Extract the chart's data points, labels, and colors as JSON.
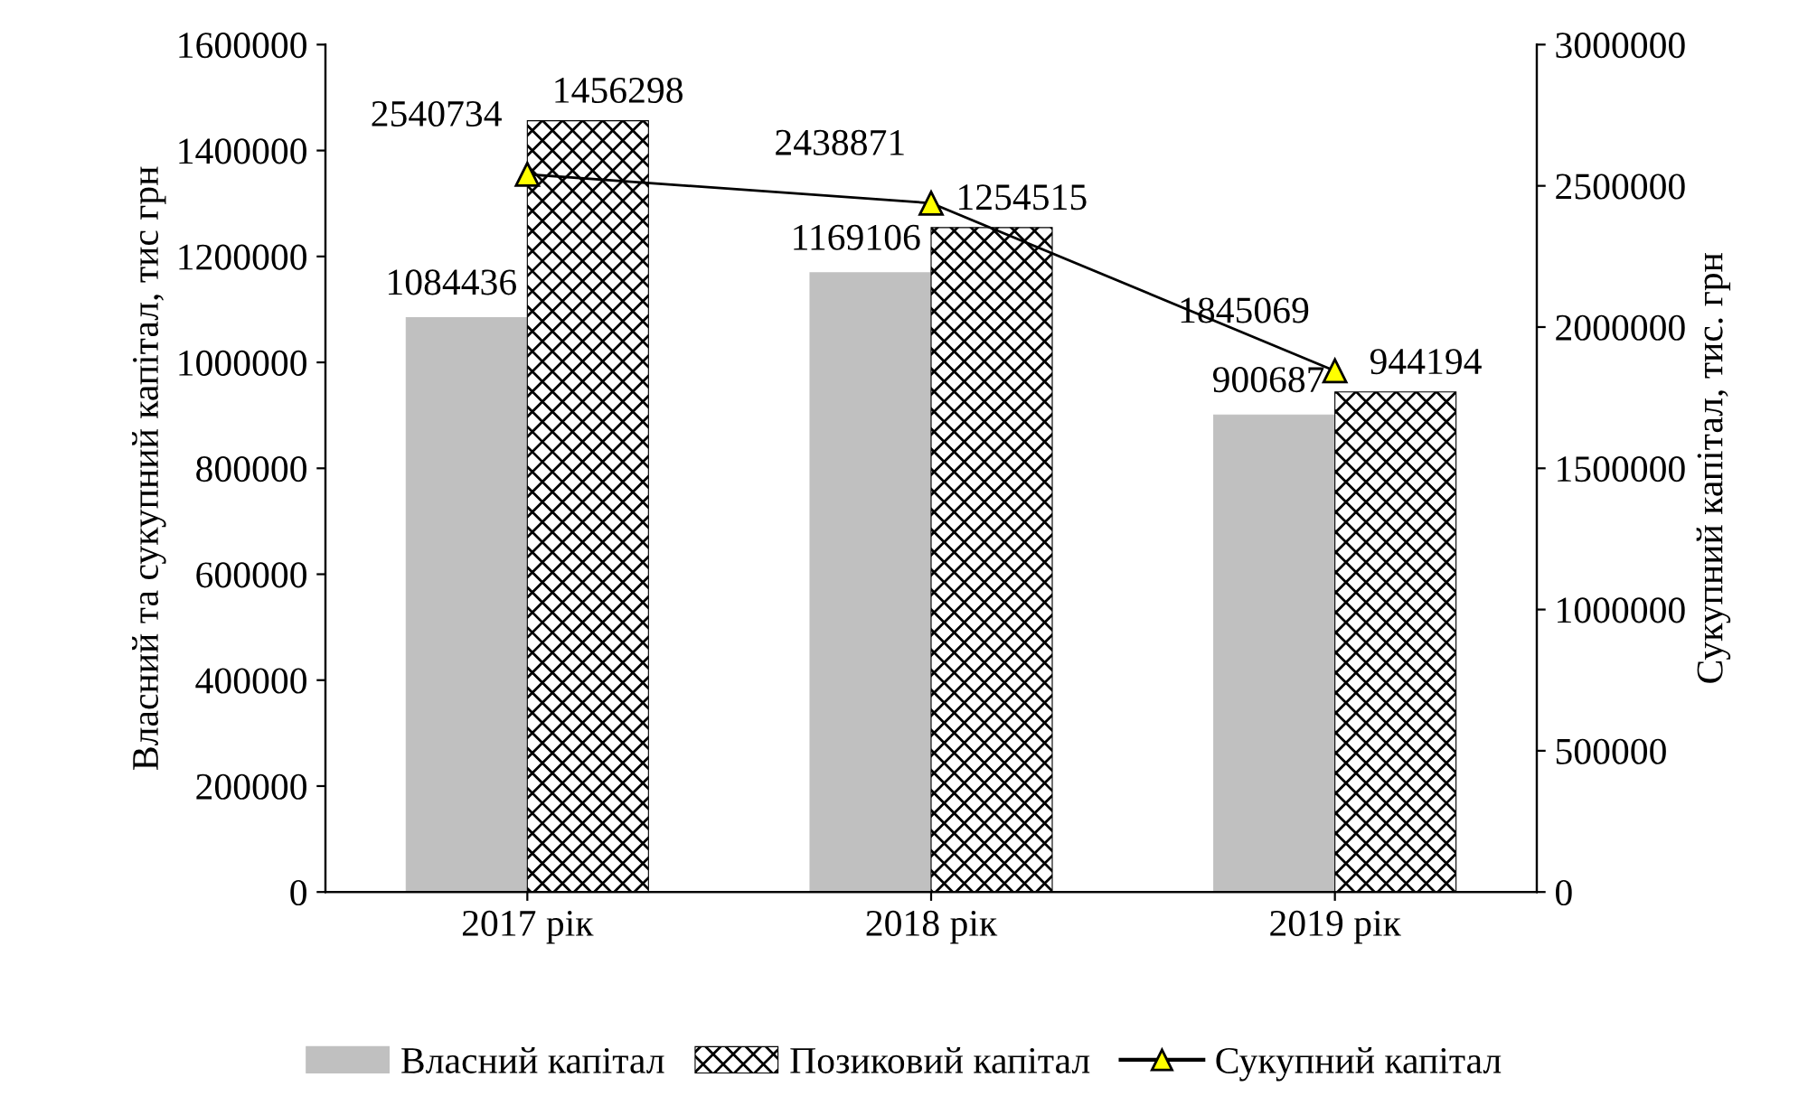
{
  "chart_data": {
    "type": "bar",
    "ylabel": "Власний та сукупний капітал, тис грн",
    "y2label": "Сукупний капітал, тис. грн",
    "categories": [
      "2017 рік",
      "2018 рік",
      "2019 рік"
    ],
    "series": [
      {
        "name": "Власний капітал",
        "color": "#c0c0c0",
        "values": [
          1084436,
          1169106,
          900687
        ]
      },
      {
        "name": "Позиковий капітал",
        "color": "#000000",
        "values": [
          1456298,
          1254515,
          944194
        ]
      },
      {
        "name": "Сукупний капітал",
        "type": "line",
        "axis": "y2",
        "color": "#000000",
        "marker": "triangle",
        "values": [
          2540734,
          2438871,
          1845069
        ]
      }
    ],
    "ylim": [
      0,
      1600000
    ],
    "yticks": [
      0,
      200000,
      400000,
      600000,
      800000,
      1000000,
      1200000,
      1400000,
      1600000
    ],
    "y2lim": [
      0,
      3000000
    ],
    "y2ticks": [
      0,
      500000,
      1000000,
      1500000,
      2000000,
      2500000,
      3000000
    ],
    "data_labels": true,
    "grid": false,
    "legend": "bottom"
  }
}
